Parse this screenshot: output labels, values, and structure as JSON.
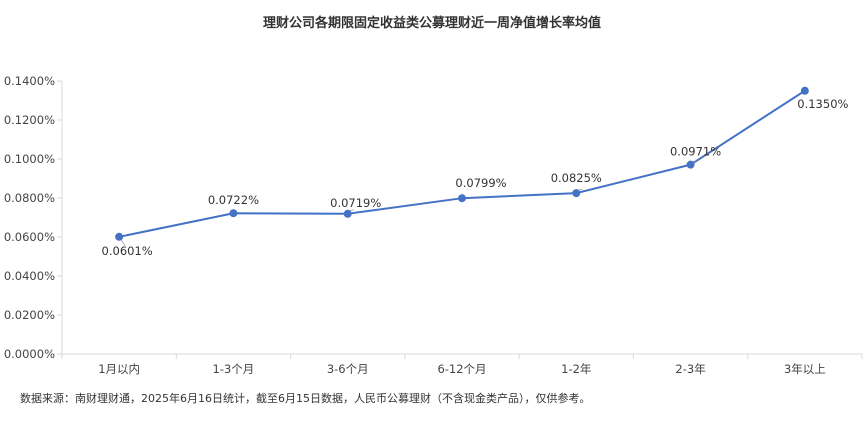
{
  "chart_data": {
    "type": "line",
    "title": "理财公司各期限固定收益类公募理财近一周净值增长率均值",
    "categories": [
      "1月以内",
      "1-3个月",
      "3-6个月",
      "6-12个月",
      "1-2年",
      "2-3年",
      "3年以上"
    ],
    "values": [
      0.0601,
      0.0722,
      0.0719,
      0.0799,
      0.0825,
      0.0971,
      0.135
    ],
    "value_labels": [
      "0.0601%",
      "0.0722%",
      "0.0719%",
      "0.0799%",
      "0.0825%",
      "0.0971%",
      "0.1350%"
    ],
    "ylim": [
      0,
      0.14
    ],
    "yticks": [
      0,
      0.02,
      0.04,
      0.06,
      0.08,
      0.1,
      0.12,
      0.14
    ],
    "ytick_labels": [
      "0.0000%",
      "0.0200%",
      "0.0400%",
      "0.0600%",
      "0.0800%",
      "0.1000%",
      "0.1200%",
      "0.1400%"
    ],
    "xlabel": "",
    "ylabel": "",
    "grid": false,
    "line_color": "#4472c4",
    "axis_color": "#d9d9d9"
  },
  "footnote": "数据来源：南财理财通，2025年6月16日统计，截至6月15日数据，人民币公募理财（不含现金类产品），仅供参考。"
}
